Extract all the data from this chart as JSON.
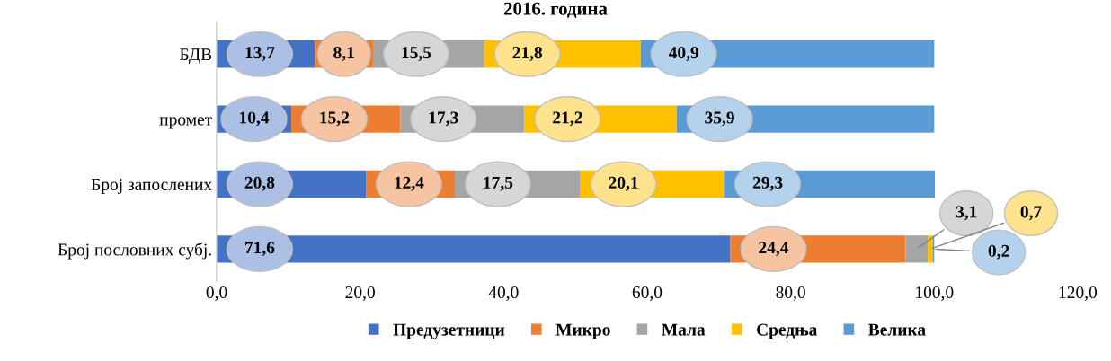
{
  "chart_data": {
    "type": "bar",
    "orientation": "horizontal",
    "stacked": true,
    "title": "2016. година",
    "categories": [
      "БДВ",
      "промет",
      "Број запослених",
      "Број пословних субј."
    ],
    "series": [
      {
        "name": "Предузетници",
        "color": "#4472c4",
        "values": [
          13.7,
          10.4,
          20.8,
          71.6
        ],
        "value_labels": [
          "13,7",
          "10,4",
          "20,8",
          "71,6"
        ]
      },
      {
        "name": "Микро",
        "color": "#ed7d31",
        "values": [
          8.1,
          15.2,
          12.4,
          24.4
        ],
        "value_labels": [
          "8,1",
          "15,2",
          "12,4",
          "24,4"
        ]
      },
      {
        "name": "Мала",
        "color": "#a5a5a5",
        "values": [
          15.5,
          17.3,
          17.5,
          3.1
        ],
        "value_labels": [
          "15,5",
          "17,3",
          "17,5",
          "3,1"
        ]
      },
      {
        "name": "Средња",
        "color": "#ffc000",
        "values": [
          21.8,
          21.2,
          20.1,
          0.7
        ],
        "value_labels": [
          "21,8",
          "21,2",
          "20,1",
          "0,7"
        ]
      },
      {
        "name": "Велика",
        "color": "#5b9bd5",
        "values": [
          40.9,
          35.9,
          29.3,
          0.2
        ],
        "value_labels": [
          "40,9",
          "35,9",
          "29,3",
          "0,2"
        ]
      }
    ],
    "xlim": [
      0,
      120
    ],
    "xticks": [
      {
        "value": 0,
        "label": "0,0"
      },
      {
        "value": 20,
        "label": "20,0"
      },
      {
        "value": 40,
        "label": "40,0"
      },
      {
        "value": 60,
        "label": "60,0"
      },
      {
        "value": 80,
        "label": "80,0"
      },
      {
        "value": 100,
        "label": "100,0"
      },
      {
        "value": 120,
        "label": "120,0"
      }
    ],
    "grid": false,
    "legend": "bottom"
  }
}
